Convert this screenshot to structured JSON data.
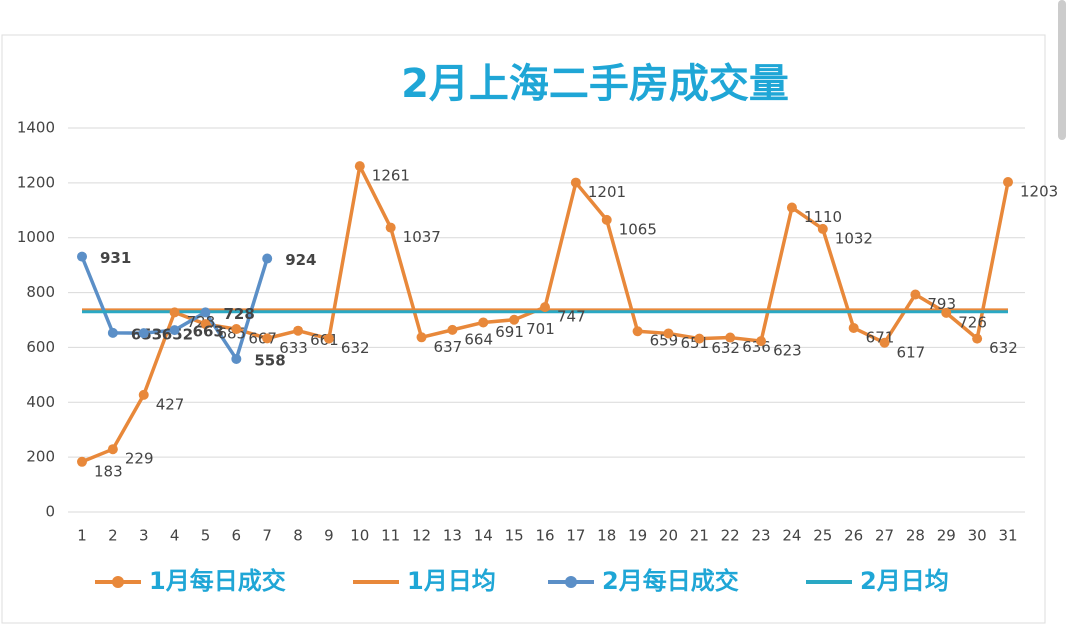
{
  "chart_data": {
    "type": "line",
    "title": "2月上海二手房成交量",
    "categories": [
      "1",
      "2",
      "3",
      "4",
      "5",
      "6",
      "7",
      "8",
      "9",
      "10",
      "11",
      "12",
      "13",
      "14",
      "15",
      "16",
      "17",
      "18",
      "19",
      "20",
      "21",
      "22",
      "23",
      "24",
      "25",
      "26",
      "27",
      "28",
      "29",
      "30",
      "31"
    ],
    "series": [
      {
        "name": "1月每日成交",
        "color": "#e8883a",
        "label_color": "#333333",
        "markers": true,
        "values": [
          183,
          229,
          427,
          728,
          685,
          667,
          633,
          661,
          632,
          1261,
          1037,
          637,
          664,
          691,
          701,
          747,
          1201,
          1065,
          659,
          651,
          632,
          636,
          623,
          1110,
          1032,
          671,
          617,
          793,
          726,
          632,
          1203
        ]
      },
      {
        "name": "1月日均",
        "color": "#e8883a",
        "type": "hline",
        "value": 737
      },
      {
        "name": "2月每日成交",
        "color": "#5b8fc7",
        "label_color": "#2fa84f",
        "markers": true,
        "values": [
          931,
          653,
          652,
          663,
          728,
          558,
          924,
          null,
          null,
          null,
          null,
          null,
          null,
          null,
          null,
          null,
          null,
          null,
          null,
          null,
          null,
          null,
          null,
          null,
          null,
          null,
          null,
          null,
          null,
          null,
          null
        ]
      },
      {
        "name": "2月日均",
        "color": "#2aa8c4",
        "type": "hline",
        "value": 730
      }
    ],
    "ylim": [
      0,
      1400
    ],
    "yticks": [
      0,
      200,
      400,
      600,
      800,
      1000,
      1200,
      1400
    ],
    "grid": true,
    "legend": "bottom"
  }
}
